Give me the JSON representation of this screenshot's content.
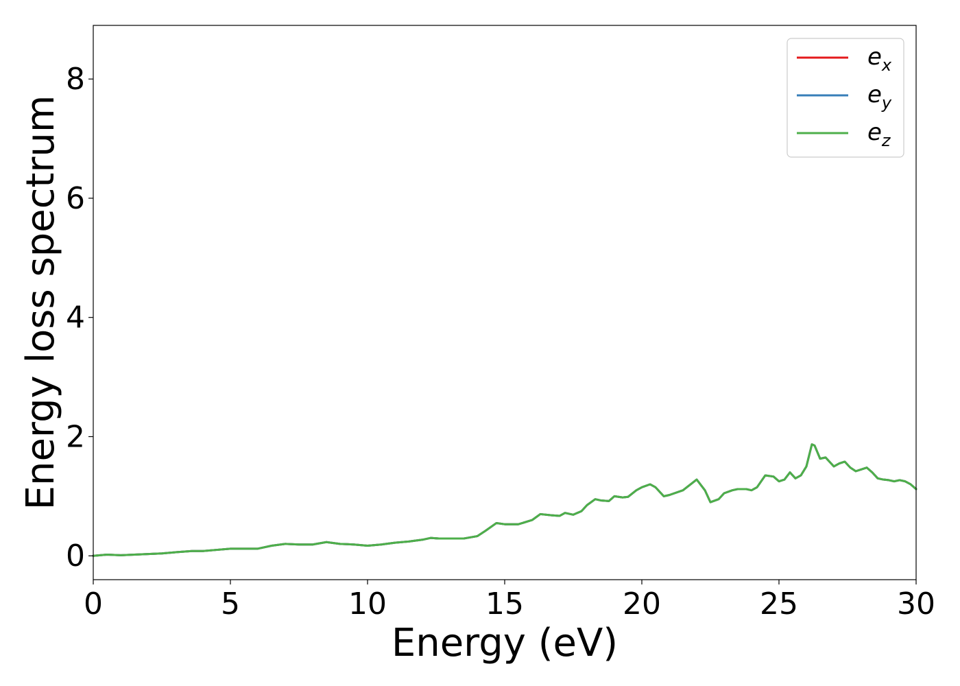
{
  "chart_data": {
    "type": "line",
    "title": "",
    "xlabel": "Energy (eV)",
    "ylabel": "Energy loss spectrum",
    "xlim": [
      0,
      30
    ],
    "ylim": [
      -0.4,
      8.9
    ],
    "xticks": [
      0,
      5,
      10,
      15,
      20,
      25,
      30
    ],
    "yticks": [
      0,
      2,
      4,
      6,
      8
    ],
    "grid": false,
    "legend_position": "top-right",
    "legend": [
      {
        "base": "e",
        "sub": "x",
        "color": "#e41a1c"
      },
      {
        "base": "e",
        "sub": "y",
        "color": "#377eb8"
      },
      {
        "base": "e",
        "sub": "z",
        "color": "#4daf4a"
      }
    ],
    "x": [
      0,
      0.5,
      1.0,
      1.5,
      2.0,
      2.5,
      3.0,
      3.3,
      3.6,
      4.0,
      4.5,
      5.0,
      5.5,
      6.0,
      6.5,
      7.0,
      7.5,
      8.0,
      8.5,
      9.0,
      9.5,
      10.0,
      10.5,
      11.0,
      11.5,
      12.0,
      12.3,
      12.6,
      13.0,
      13.5,
      14.0,
      14.3,
      14.7,
      15.0,
      15.5,
      16.0,
      16.3,
      16.7,
      17.0,
      17.2,
      17.5,
      17.8,
      18.0,
      18.3,
      18.5,
      18.8,
      19.0,
      19.3,
      19.5,
      19.8,
      20.0,
      20.3,
      20.5,
      20.8,
      21.0,
      21.5,
      22.0,
      22.3,
      22.5,
      22.8,
      23.0,
      23.3,
      23.5,
      23.8,
      24.0,
      24.2,
      24.5,
      24.8,
      25.0,
      25.2,
      25.4,
      25.6,
      25.8,
      26.0,
      26.2,
      26.3,
      26.5,
      26.7,
      26.8,
      27.0,
      27.2,
      27.4,
      27.6,
      27.8,
      28.0,
      28.2,
      28.4,
      28.6,
      28.8,
      29.0,
      29.2,
      29.4,
      29.6,
      29.8,
      30.0
    ],
    "series": [
      {
        "name": "e_x",
        "color": "#e41a1c",
        "values": [
          0.0,
          0.02,
          0.01,
          0.02,
          0.03,
          0.04,
          0.06,
          0.07,
          0.08,
          0.08,
          0.1,
          0.12,
          0.12,
          0.12,
          0.17,
          0.2,
          0.19,
          0.19,
          0.23,
          0.2,
          0.19,
          0.17,
          0.19,
          0.22,
          0.24,
          0.27,
          0.3,
          0.29,
          0.29,
          0.29,
          0.33,
          0.42,
          0.55,
          0.53,
          0.53,
          0.6,
          0.7,
          0.68,
          0.67,
          0.72,
          0.69,
          0.75,
          0.85,
          0.95,
          0.93,
          0.92,
          1.0,
          0.98,
          0.99,
          1.1,
          1.15,
          1.2,
          1.15,
          1.0,
          1.02,
          1.1,
          1.28,
          1.1,
          0.9,
          0.95,
          1.05,
          1.1,
          1.12,
          1.12,
          1.1,
          1.15,
          1.35,
          1.33,
          1.25,
          1.28,
          1.4,
          1.3,
          1.35,
          1.5,
          1.87,
          1.85,
          1.63,
          1.65,
          1.6,
          1.5,
          1.55,
          1.58,
          1.48,
          1.42,
          1.45,
          1.48,
          1.4,
          1.3,
          1.28,
          1.27,
          1.25,
          1.27,
          1.25,
          1.2,
          1.12
        ]
      },
      {
        "name": "e_y",
        "color": "#377eb8",
        "values": [
          0.0,
          0.02,
          0.01,
          0.02,
          0.03,
          0.04,
          0.06,
          0.07,
          0.08,
          0.08,
          0.1,
          0.12,
          0.12,
          0.12,
          0.17,
          0.2,
          0.19,
          0.19,
          0.23,
          0.2,
          0.19,
          0.17,
          0.19,
          0.22,
          0.24,
          0.27,
          0.3,
          0.29,
          0.29,
          0.29,
          0.33,
          0.42,
          0.55,
          0.53,
          0.53,
          0.6,
          0.7,
          0.68,
          0.67,
          0.72,
          0.69,
          0.75,
          0.85,
          0.95,
          0.93,
          0.92,
          1.0,
          0.98,
          0.99,
          1.1,
          1.15,
          1.2,
          1.15,
          1.0,
          1.02,
          1.1,
          1.28,
          1.1,
          0.9,
          0.95,
          1.05,
          1.1,
          1.12,
          1.12,
          1.1,
          1.15,
          1.35,
          1.33,
          1.25,
          1.28,
          1.4,
          1.3,
          1.35,
          1.5,
          1.87,
          1.85,
          1.63,
          1.65,
          1.6,
          1.5,
          1.55,
          1.58,
          1.48,
          1.42,
          1.45,
          1.48,
          1.4,
          1.3,
          1.28,
          1.27,
          1.25,
          1.27,
          1.25,
          1.2,
          1.12
        ]
      },
      {
        "name": "e_z",
        "color": "#4daf4a",
        "values": [
          0.0,
          0.02,
          0.01,
          0.02,
          0.03,
          0.04,
          0.06,
          0.07,
          0.08,
          0.08,
          0.1,
          0.12,
          0.12,
          0.12,
          0.17,
          0.2,
          0.19,
          0.19,
          0.23,
          0.2,
          0.19,
          0.17,
          0.19,
          0.22,
          0.24,
          0.27,
          0.3,
          0.29,
          0.29,
          0.29,
          0.33,
          0.42,
          0.55,
          0.53,
          0.53,
          0.6,
          0.7,
          0.68,
          0.67,
          0.72,
          0.69,
          0.75,
          0.85,
          0.95,
          0.93,
          0.92,
          1.0,
          0.98,
          0.99,
          1.1,
          1.15,
          1.2,
          1.15,
          1.0,
          1.02,
          1.1,
          1.28,
          1.1,
          0.9,
          0.95,
          1.05,
          1.1,
          1.12,
          1.12,
          1.1,
          1.15,
          1.35,
          1.33,
          1.25,
          1.28,
          1.4,
          1.3,
          1.35,
          1.5,
          1.87,
          1.85,
          1.63,
          1.65,
          1.6,
          1.5,
          1.55,
          1.58,
          1.48,
          1.42,
          1.45,
          1.48,
          1.4,
          1.3,
          1.28,
          1.27,
          1.25,
          1.27,
          1.25,
          1.2,
          1.12
        ]
      }
    ]
  }
}
